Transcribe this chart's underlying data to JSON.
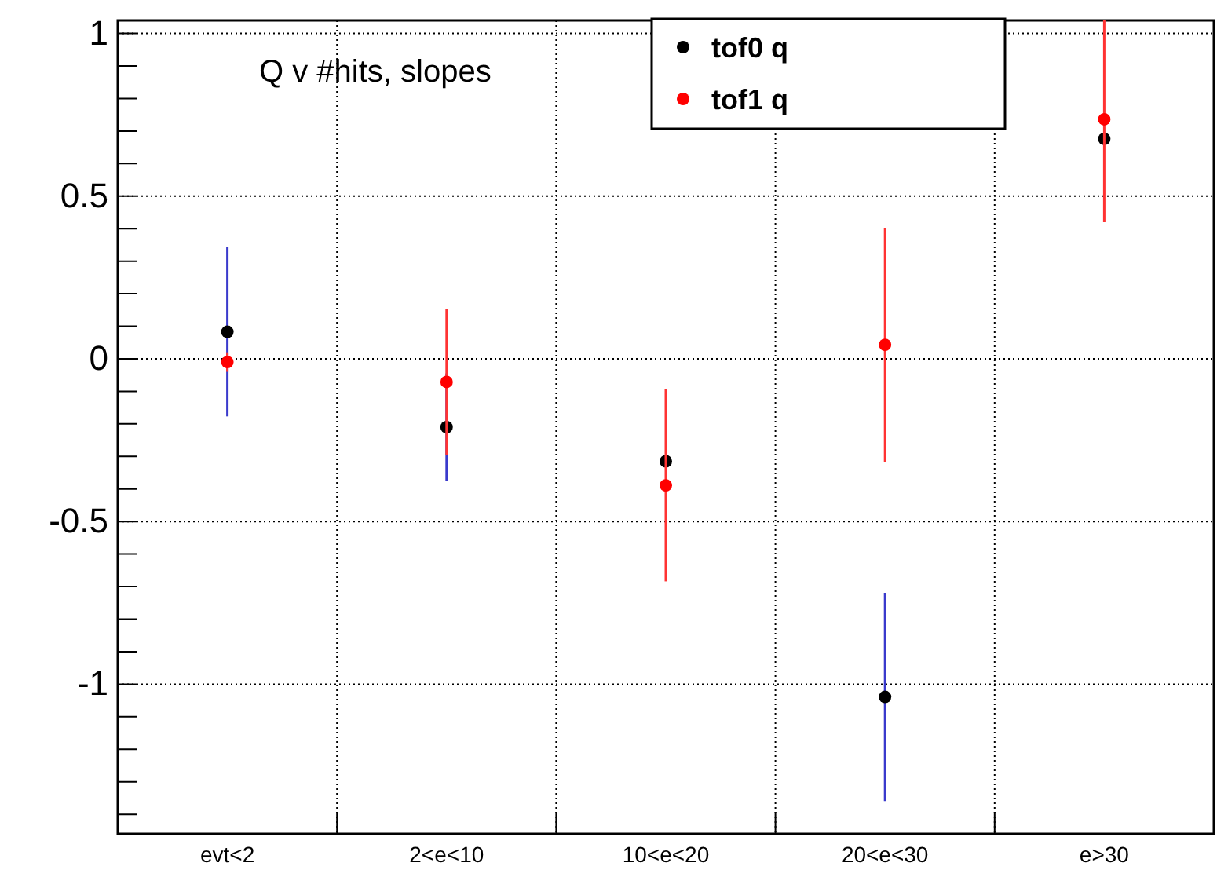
{
  "chart_data": {
    "type": "scatter",
    "title": "Q v #hits, slopes",
    "categories": [
      "evt<2",
      "2<e<10",
      "10<e<20",
      "20<e<30",
      "e>30"
    ],
    "series": [
      {
        "name": "tof0 q",
        "color": "#000000",
        "values": [
          0.083,
          -0.21,
          -0.315,
          -1.039,
          0.676
        ],
        "errors": [
          0.26,
          0.165,
          null,
          0.32,
          null
        ]
      },
      {
        "name": "tof1 q",
        "color": "#ff0000",
        "values": [
          -0.01,
          -0.071,
          -0.389,
          0.043,
          0.736
        ],
        "errors": [
          0.03,
          0.225,
          0.295,
          0.36,
          [
            0.42,
            1.04
          ]
        ]
      }
    ],
    "ylim": [
      -1.46,
      1.04
    ],
    "yticks": [
      {
        "value": -1.4,
        "label": null
      },
      {
        "value": -1.3,
        "label": null
      },
      {
        "value": -1.2,
        "label": null
      },
      {
        "value": -1.1,
        "label": null
      },
      -1,
      {
        "value": -0.9,
        "label": null
      },
      {
        "value": -0.8,
        "label": null
      },
      {
        "value": -0.7,
        "label": null
      },
      {
        "value": -0.6,
        "label": null
      },
      -0.5,
      {
        "value": -0.4,
        "label": null
      },
      {
        "value": -0.3,
        "label": null
      },
      {
        "value": -0.2,
        "label": null
      },
      {
        "value": -0.1,
        "label": null
      },
      0,
      {
        "value": 0.1,
        "label": null
      },
      {
        "value": 0.2,
        "label": null
      },
      {
        "value": 0.3,
        "label": null
      },
      {
        "value": 0.4,
        "label": null
      },
      0.5,
      {
        "value": 0.6,
        "label": null
      },
      {
        "value": 0.7,
        "label": null
      },
      {
        "value": 0.8,
        "label": null
      },
      {
        "value": 0.9,
        "label": null
      },
      1
    ],
    "grid": true,
    "legend": "top right",
    "marker": "circle"
  }
}
